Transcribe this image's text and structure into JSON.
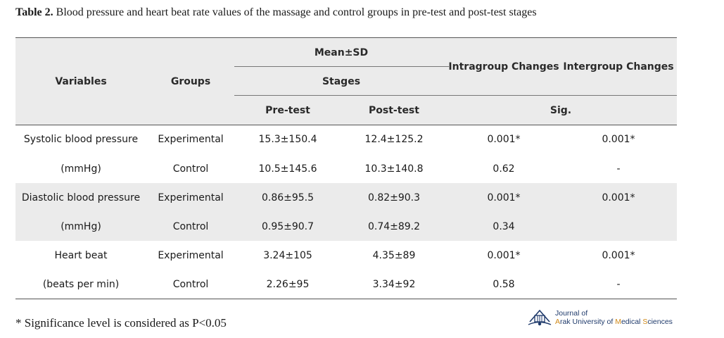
{
  "caption": {
    "label": "Table 2.",
    "text": " Blood pressure and heart beat rate values of the massage and control groups in pre-test and post-test stages"
  },
  "table": {
    "headers": {
      "variables": "Variables",
      "groups": "Groups",
      "mean_sd": "Mean±SD",
      "stages": "Stages",
      "pre_test": "Pre-test",
      "post_test": "Post-test",
      "intragroup": "Intragroup Changes",
      "intergroup": "Intergroup Changes",
      "sig": "Sig."
    },
    "rows": [
      {
        "variable": "Systolic blood pressure",
        "group": "Experimental",
        "pre": "15.3±150.4",
        "post": "12.4±125.2",
        "intra": "0.001*",
        "inter": "0.001*"
      },
      {
        "variable": "(mmHg)",
        "group": "Control",
        "pre": "10.5±145.6",
        "post": "10.3±140.8",
        "intra": "0.62",
        "inter": "-"
      },
      {
        "variable": "Diastolic blood pressure",
        "group": "Experimental",
        "pre": "0.86±95.5",
        "post": "0.82±90.3",
        "intra": "0.001*",
        "inter": "0.001*"
      },
      {
        "variable": "(mmHg)",
        "group": "Control",
        "pre": "0.95±90.7",
        "post": "0.74±89.2",
        "intra": "0.34",
        "inter": ""
      },
      {
        "variable": "Heart beat",
        "group": "Experimental",
        "pre": "3.24±105",
        "post": "4.35±89",
        "intra": "0.001*",
        "inter": "0.001*"
      },
      {
        "variable": "(beats per min)",
        "group": "Control",
        "pre": "2.26±95",
        "post": "3.34±92",
        "intra": "0.58",
        "inter": "-"
      }
    ]
  },
  "footnote": "* Significance level is considered as P<0.05",
  "logo": {
    "line1": "Journal of",
    "line2_a": "A",
    "line2_b": "rak University of ",
    "line2_c": "M",
    "line2_d": "edical ",
    "line2_e": "S",
    "line2_f": "ciences"
  },
  "colors": {
    "band": "#ebebeb",
    "logo_blue": "#1f3a6b",
    "logo_orange": "#d08a1a"
  }
}
